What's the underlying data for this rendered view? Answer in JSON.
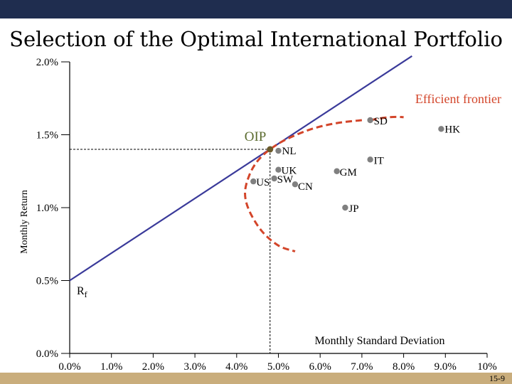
{
  "title": "Selection of the Optimal International Portfolio",
  "slide_number": "15-9",
  "colors": {
    "header_bar": "#1f2d4f",
    "footer_bar": "#c9ad7c",
    "cml_line": "#3a3a9a",
    "frontier": "#d3452a",
    "points": "#808080",
    "oip_point": "#6b5a2a"
  },
  "chart_data": {
    "type": "scatter",
    "title": "Selection of the Optimal International Portfolio",
    "xlabel": "Monthly Standard Deviation",
    "ylabel": "Monthly Return",
    "xlim": [
      0,
      10
    ],
    "ylim": [
      0,
      2
    ],
    "x_ticks": [
      "0.0%",
      "1.0%",
      "2.0%",
      "3.0%",
      "4.0%",
      "5.0%",
      "6.0%",
      "7.0%",
      "8.0%",
      "9.0%",
      "10%"
    ],
    "y_ticks": [
      "0.0%",
      "0.5%",
      "1.0%",
      "1.5%",
      "2.0%"
    ],
    "points": [
      {
        "label": "SD",
        "x": 7.2,
        "y": 1.6
      },
      {
        "label": "HK",
        "x": 8.9,
        "y": 1.54
      },
      {
        "label": "NL",
        "x": 5.0,
        "y": 1.39
      },
      {
        "label": "IT",
        "x": 7.2,
        "y": 1.33
      },
      {
        "label": "UK",
        "x": 5.0,
        "y": 1.26
      },
      {
        "label": "SW",
        "x": 4.9,
        "y": 1.2
      },
      {
        "label": "US",
        "x": 4.4,
        "y": 1.18
      },
      {
        "label": "GM",
        "x": 6.4,
        "y": 1.25
      },
      {
        "label": "CN",
        "x": 5.4,
        "y": 1.16
      },
      {
        "label": "JP",
        "x": 6.6,
        "y": 1.0
      }
    ],
    "oip": {
      "label": "OIP",
      "x": 4.8,
      "y": 1.4
    },
    "risk_free": {
      "label": "Rf",
      "x": 0.0,
      "y": 0.5
    },
    "cml": {
      "x": [
        0.0,
        8.2
      ],
      "y": [
        0.5,
        2.04
      ]
    },
    "frontier": {
      "label": "Efficient frontier",
      "x": [
        7.0,
        6.4,
        5.8,
        5.2,
        4.8,
        4.5,
        4.3,
        4.2,
        4.3,
        4.6,
        5.0,
        5.4
      ],
      "y": [
        1.6,
        1.58,
        1.54,
        1.47,
        1.4,
        1.32,
        1.22,
        1.1,
        0.98,
        0.84,
        0.74,
        0.7
      ]
    },
    "annotations": [
      "Efficient frontier",
      "OIP",
      "Rf"
    ]
  }
}
